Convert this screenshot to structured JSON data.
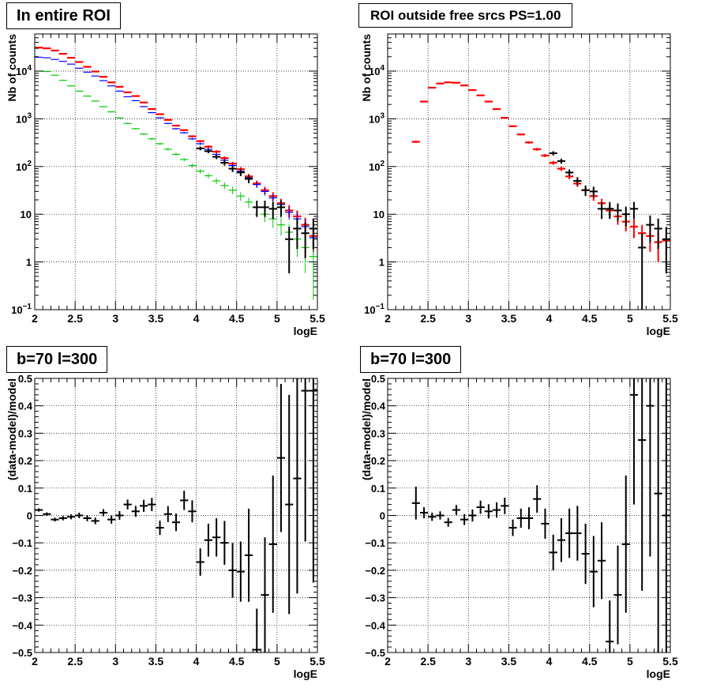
{
  "colors": {
    "data": "#000000",
    "red": "#ff0000",
    "blue": "#0000ff",
    "green": "#00cc00"
  },
  "chart_data": [
    {
      "type": "scatter",
      "title": "In entire ROI",
      "xlabel": "logE",
      "ylabel": "Nb of counts",
      "xlim": [
        2,
        5.5
      ],
      "ylim": [
        0.1,
        60000
      ],
      "yscale": "log",
      "grid": true,
      "x": [
        2.05,
        2.15,
        2.25,
        2.35,
        2.45,
        2.55,
        2.65,
        2.75,
        2.85,
        2.95,
        3.05,
        3.15,
        3.25,
        3.35,
        3.45,
        3.55,
        3.65,
        3.75,
        3.85,
        3.95,
        4.05,
        4.15,
        4.25,
        4.35,
        4.45,
        4.55,
        4.65,
        4.75,
        4.85,
        4.95,
        5.05,
        5.15,
        5.25,
        5.35,
        5.45
      ],
      "series": [
        {
          "color": "red",
          "style": "bar",
          "values": [
            31000,
            30000,
            27000,
            23000,
            19000,
            15500,
            12300,
            9800,
            7600,
            5800,
            4700,
            3600,
            3000,
            2200,
            1600,
            1250,
            950,
            720,
            580,
            430,
            340,
            260,
            205,
            150,
            115,
            88,
            62,
            44,
            32,
            24,
            17,
            12,
            9,
            6,
            3.5
          ]
        },
        {
          "color": "blue",
          "style": "bar",
          "values": [
            19500,
            19000,
            17500,
            16000,
            14000,
            11500,
            9500,
            7900,
            6300,
            4900,
            3800,
            2900,
            2400,
            1800,
            1350,
            1050,
            800,
            620,
            510,
            380,
            300,
            230,
            180,
            135,
            105,
            80,
            58,
            42,
            30,
            22,
            16,
            11,
            8,
            5.5,
            3.2
          ]
        },
        {
          "color": "green",
          "style": "bar",
          "values": [
            10000,
            9800,
            8200,
            6400,
            4900,
            3800,
            3000,
            2350,
            1800,
            1400,
            1050,
            800,
            620,
            480,
            380,
            300,
            230,
            180,
            140,
            105,
            80,
            64,
            50,
            40,
            32,
            24,
            18,
            14,
            10,
            8,
            6,
            4.2,
            3,
            2,
            1.3
          ]
        },
        {
          "color": "black",
          "style": "errorbar",
          "x": [
            4.05,
            4.15,
            4.25,
            4.35,
            4.45,
            4.55,
            4.65,
            4.75,
            4.85,
            4.95,
            5.05,
            5.15,
            5.25,
            5.35,
            5.45
          ],
          "values": [
            240,
            210,
            160,
            120,
            90,
            75,
            55,
            14,
            14,
            13,
            14,
            3,
            5,
            4,
            5
          ]
        }
      ]
    },
    {
      "type": "scatter",
      "title": "ROI outside free srcs PS=1.00",
      "xlabel": "logE",
      "ylabel": "Nb of counts",
      "xlim": [
        2,
        5.5
      ],
      "ylim": [
        0.1,
        60000
      ],
      "yscale": "log",
      "grid": true,
      "x": [
        2.35,
        2.45,
        2.55,
        2.65,
        2.75,
        2.85,
        2.95,
        3.05,
        3.15,
        3.25,
        3.35,
        3.45,
        3.55,
        3.65,
        3.75,
        3.85,
        3.95,
        4.05,
        4.15,
        4.25,
        4.35,
        4.45,
        4.55,
        4.65,
        4.75,
        4.85,
        4.95,
        5.05,
        5.15,
        5.25,
        5.35,
        5.45
      ],
      "series": [
        {
          "color": "red",
          "style": "bar",
          "values": [
            330,
            2300,
            4500,
            5500,
            5800,
            5700,
            5000,
            4000,
            3100,
            2300,
            1600,
            1050,
            700,
            470,
            320,
            230,
            170,
            120,
            90,
            62,
            44,
            32,
            24,
            17,
            12,
            9,
            7,
            5.5,
            4,
            3.5,
            2.6,
            2.8
          ]
        },
        {
          "color": "black",
          "style": "errorbar",
          "x": [
            4.05,
            4.15,
            4.25,
            4.35,
            4.45,
            4.55,
            4.65,
            4.75,
            4.85,
            4.95,
            5.05,
            5.15,
            5.25,
            5.35,
            5.45
          ],
          "values": [
            190,
            130,
            75,
            50,
            32,
            30,
            13,
            13,
            12,
            10,
            13,
            2,
            6,
            5,
            3
          ]
        }
      ]
    },
    {
      "type": "scatter",
      "title": "b=70 l=300",
      "xlabel": "logE",
      "ylabel": "(data-model)/model",
      "xlim": [
        2,
        5.5
      ],
      "ylim": [
        -0.5,
        0.5
      ],
      "grid": true,
      "x": [
        2.05,
        2.15,
        2.25,
        2.35,
        2.45,
        2.55,
        2.65,
        2.75,
        2.85,
        2.95,
        3.05,
        3.15,
        3.25,
        3.35,
        3.45,
        3.55,
        3.65,
        3.75,
        3.85,
        3.95,
        4.05,
        4.15,
        4.25,
        4.35,
        4.45,
        4.55,
        4.65,
        4.75,
        4.85,
        4.95,
        5.05,
        5.15,
        5.25,
        5.35,
        5.45
      ],
      "series": [
        {
          "color": "black",
          "style": "errorbar",
          "values": [
            0.02,
            0.005,
            -0.015,
            -0.01,
            -0.005,
            0.0,
            -0.01,
            -0.02,
            0.01,
            -0.015,
            0.0,
            0.04,
            0.015,
            0.035,
            0.04,
            -0.045,
            0.005,
            -0.025,
            0.055,
            0.015,
            -0.17,
            -0.09,
            -0.08,
            -0.1,
            -0.2,
            -0.205,
            -0.145,
            -0.49,
            -0.29,
            -0.105,
            0.21,
            0.04,
            0.135,
            0.455,
            0.455
          ],
          "errors": [
            0.006,
            0.006,
            0.007,
            0.008,
            0.009,
            0.01,
            0.011,
            0.012,
            0.013,
            0.015,
            0.016,
            0.018,
            0.02,
            0.022,
            0.024,
            0.026,
            0.029,
            0.032,
            0.035,
            0.04,
            0.05,
            0.06,
            0.07,
            0.08,
            0.1,
            0.11,
            0.17,
            0.15,
            0.21,
            0.25,
            0.27,
            0.4,
            0.42,
            0.55,
            0.7
          ]
        }
      ]
    },
    {
      "type": "scatter",
      "title": "b=70 l=300",
      "xlabel": "logE",
      "ylabel": "(data-model)/model",
      "xlim": [
        2,
        5.5
      ],
      "ylim": [
        -0.5,
        0.5
      ],
      "grid": true,
      "x": [
        2.35,
        2.45,
        2.55,
        2.65,
        2.75,
        2.85,
        2.95,
        3.05,
        3.15,
        3.25,
        3.35,
        3.45,
        3.55,
        3.65,
        3.75,
        3.85,
        3.95,
        4.05,
        4.15,
        4.25,
        4.35,
        4.45,
        4.55,
        4.65,
        4.75,
        4.85,
        4.95,
        5.05,
        5.15,
        5.25,
        5.35,
        5.45
      ],
      "series": [
        {
          "color": "black",
          "style": "errorbar",
          "values": [
            0.045,
            0.01,
            -0.005,
            0.0,
            -0.025,
            0.02,
            -0.015,
            0.0,
            0.03,
            0.015,
            0.02,
            0.035,
            -0.045,
            -0.01,
            -0.01,
            0.06,
            -0.03,
            -0.135,
            -0.09,
            -0.065,
            -0.065,
            -0.14,
            -0.205,
            -0.165,
            -0.46,
            -0.29,
            -0.105,
            0.44,
            0.275,
            0.4,
            0.08,
            0.0
          ],
          "errors": [
            0.06,
            0.02,
            0.015,
            0.015,
            0.016,
            0.018,
            0.02,
            0.022,
            0.024,
            0.026,
            0.028,
            0.03,
            0.03,
            0.035,
            0.04,
            0.05,
            0.055,
            0.065,
            0.08,
            0.09,
            0.1,
            0.11,
            0.13,
            0.14,
            0.15,
            0.18,
            0.25,
            0.4,
            0.55,
            0.55,
            0.7,
            0.8
          ]
        }
      ]
    }
  ]
}
